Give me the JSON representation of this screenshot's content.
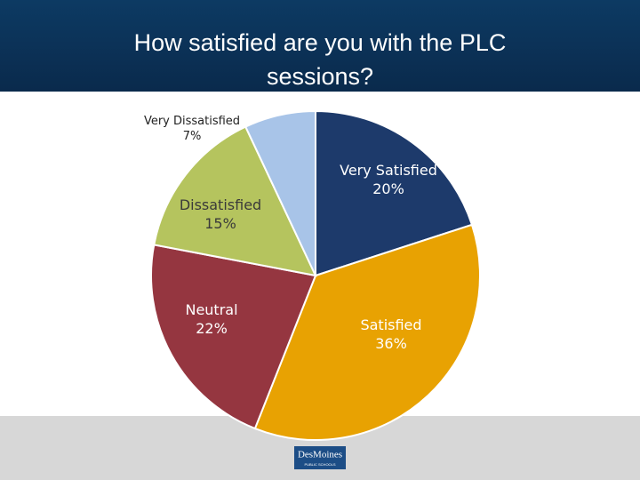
{
  "chart_data": {
    "type": "pie",
    "title": "How satisfied are you with the PLC sessions?",
    "categories": [
      "Very Satisfied",
      "Satisfied",
      "Neutral",
      "Dissatisfied",
      "Very Dissatisfied"
    ],
    "values": [
      20,
      36,
      22,
      15,
      7
    ],
    "value_labels": [
      "20%",
      "36%",
      "22%",
      "15%",
      "7%"
    ],
    "colors": [
      "#1d3a6b",
      "#e8a202",
      "#953640",
      "#b5c45e",
      "#a8c4e8"
    ]
  },
  "footer": {
    "logo_text": "DesMoines",
    "logo_subtext": "PUBLIC SCHOOLS"
  }
}
